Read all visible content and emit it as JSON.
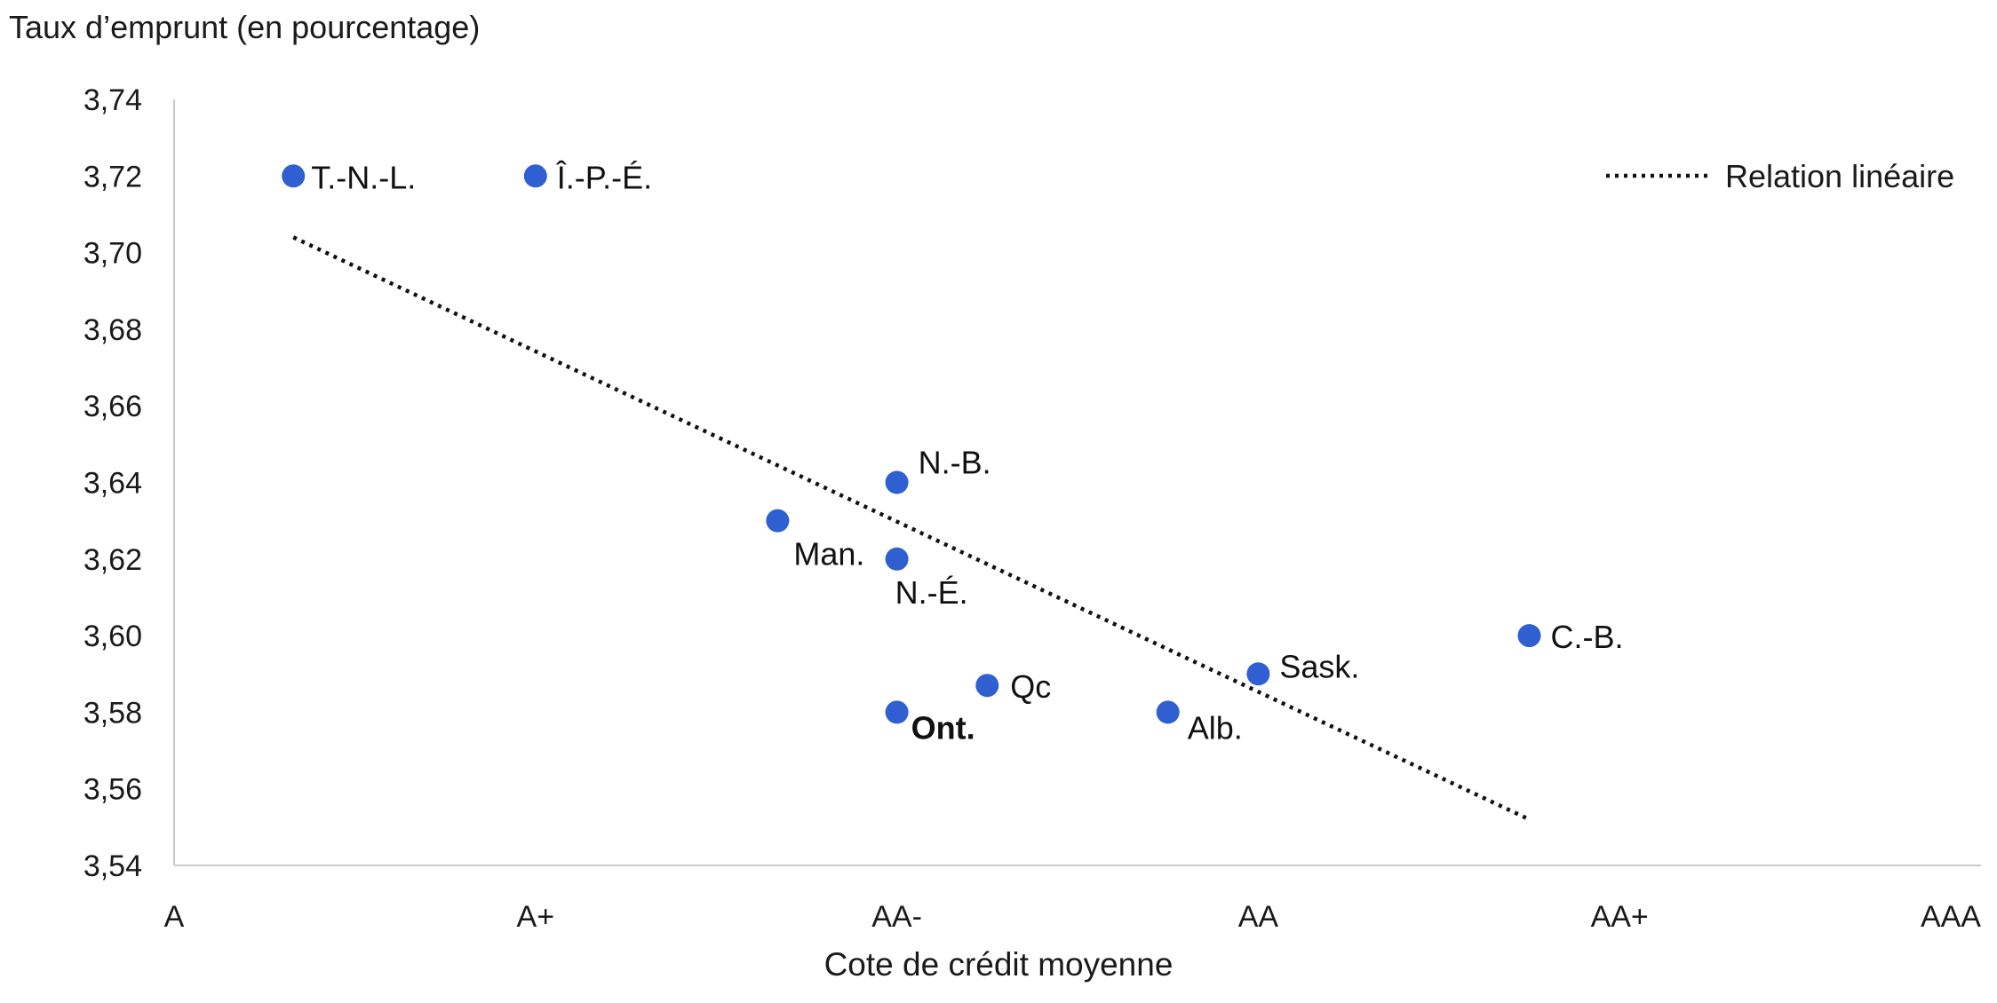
{
  "chart_data": {
    "type": "scatter",
    "ylabel": "Taux d’emprunt (en pourcentage)",
    "xlabel": "Cote de crédit moyenne",
    "x_categories": [
      "A",
      "A+",
      "AA-",
      "AA",
      "AA+",
      "AAA"
    ],
    "ylim": [
      3.54,
      3.74
    ],
    "yticks": [
      "3,54",
      "3,56",
      "3,58",
      "3,60",
      "3,62",
      "3,64",
      "3,66",
      "3,68",
      "3,70",
      "3,72",
      "3,74"
    ],
    "grid": false,
    "legend": {
      "position": "top-right",
      "label": "Relation linéaire"
    },
    "point_color": "#2f5fd0",
    "trend_color": "#111111",
    "points": [
      {
        "label": "T.-N.-L.",
        "x": 0.33,
        "y": 3.72
      },
      {
        "label": "Î.-P.-É.",
        "x": 1.0,
        "y": 3.72
      },
      {
        "label": "N.-B.",
        "x": 2.0,
        "y": 3.64
      },
      {
        "label": "Man.",
        "x": 1.67,
        "y": 3.63
      },
      {
        "label": "N.-É.",
        "x": 2.0,
        "y": 3.62
      },
      {
        "label": "Qc",
        "x": 2.25,
        "y": 3.587
      },
      {
        "label": "Ont.",
        "x": 2.0,
        "y": 3.58,
        "bold": true
      },
      {
        "label": "Alb.",
        "x": 2.75,
        "y": 3.58
      },
      {
        "label": "Sask.",
        "x": 3.0,
        "y": 3.59
      },
      {
        "label": "C.-B.",
        "x": 3.75,
        "y": 3.6
      }
    ],
    "trendline": {
      "x": [
        0.33,
        3.75
      ],
      "y": [
        3.704,
        3.552
      ]
    }
  }
}
